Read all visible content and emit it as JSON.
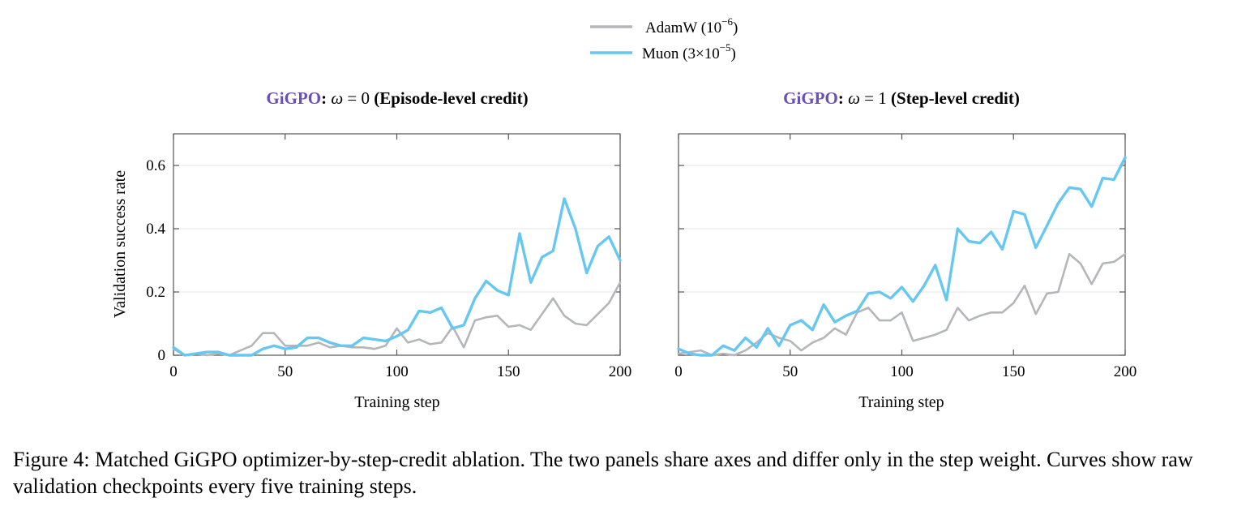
{
  "figure": {
    "caption": "Figure 4: Matched GiGPO optimizer-by-step-credit ablation. The two panels share axes and differ only in the step weight. Curves show raw validation checkpoints every five training steps."
  },
  "legend": [
    {
      "series": "AdamW",
      "lr_base": "10",
      "lr_exp": "−6",
      "color": "#b4b6ba"
    },
    {
      "series": "Muon",
      "lr_base": "3×10",
      "lr_exp": "−5",
      "color": "#66c8f2"
    }
  ],
  "colors": {
    "method": "#6a4fb8",
    "grid": "#e4e4e4",
    "axis": "#555555"
  },
  "chart_data": [
    {
      "type": "line",
      "title": {
        "method": "GiGPO",
        "sep": ":",
        "omega": "ω",
        "eq": " = 0 ",
        "credit": "(Episode-level credit)"
      },
      "xlabel": "Training step",
      "ylabel": "Validation success rate",
      "xlim": [
        0,
        200
      ],
      "ylim": [
        0,
        0.7
      ],
      "xticks": [
        0,
        50,
        100,
        150,
        200
      ],
      "xtick_labels": [
        "0",
        "50",
        "100",
        "150",
        "200"
      ],
      "yticks": [
        0,
        0.2,
        0.4,
        0.6
      ],
      "ytick_labels": [
        "0",
        "0.2",
        "0.4",
        "0.6"
      ],
      "grid": true,
      "x": [
        0,
        5,
        10,
        15,
        20,
        25,
        30,
        35,
        40,
        45,
        50,
        55,
        60,
        65,
        70,
        75,
        80,
        85,
        90,
        95,
        100,
        105,
        110,
        115,
        120,
        125,
        130,
        135,
        140,
        145,
        150,
        155,
        160,
        165,
        170,
        175,
        180,
        185,
        190,
        195,
        200
      ],
      "series": [
        {
          "name": "AdamW (10⁻⁶)",
          "color": "#b4b6ba",
          "values": [
            0.02,
            0.0,
            0.005,
            0.0,
            0.005,
            0.0,
            0.015,
            0.03,
            0.07,
            0.07,
            0.03,
            0.03,
            0.03,
            0.04,
            0.025,
            0.03,
            0.025,
            0.025,
            0.02,
            0.03,
            0.085,
            0.04,
            0.05,
            0.035,
            0.04,
            0.09,
            0.025,
            0.11,
            0.12,
            0.125,
            0.09,
            0.095,
            0.08,
            0.13,
            0.18,
            0.125,
            0.1,
            0.095,
            0.13,
            0.165,
            0.23
          ]
        },
        {
          "name": "Muon (3×10⁻⁵)",
          "color": "#66c8f2",
          "values": [
            0.025,
            0.0,
            0.005,
            0.01,
            0.01,
            0.0,
            0.0,
            0.0,
            0.02,
            0.03,
            0.02,
            0.025,
            0.055,
            0.055,
            0.04,
            0.03,
            0.03,
            0.055,
            0.05,
            0.045,
            0.06,
            0.08,
            0.14,
            0.135,
            0.15,
            0.085,
            0.095,
            0.18,
            0.235,
            0.205,
            0.19,
            0.385,
            0.23,
            0.31,
            0.33,
            0.495,
            0.4,
            0.26,
            0.345,
            0.375,
            0.3
          ]
        }
      ]
    },
    {
      "type": "line",
      "title": {
        "method": "GiGPO",
        "sep": ":",
        "omega": "ω",
        "eq": " = 1 ",
        "credit": "(Step-level credit)"
      },
      "xlabel": "Training step",
      "ylabel": "",
      "xlim": [
        0,
        200
      ],
      "ylim": [
        0,
        0.7
      ],
      "xticks": [
        0,
        50,
        100,
        150,
        200
      ],
      "xtick_labels": [
        "0",
        "50",
        "100",
        "150",
        "200"
      ],
      "yticks": [
        0,
        0.2,
        0.4,
        0.6
      ],
      "ytick_labels": [],
      "grid": true,
      "x": [
        0,
        5,
        10,
        15,
        20,
        25,
        30,
        35,
        40,
        45,
        50,
        55,
        60,
        65,
        70,
        75,
        80,
        85,
        90,
        95,
        100,
        105,
        110,
        115,
        120,
        125,
        130,
        135,
        140,
        145,
        150,
        155,
        160,
        165,
        170,
        175,
        180,
        185,
        190,
        195,
        200
      ],
      "series": [
        {
          "name": "AdamW (10⁻⁶)",
          "color": "#b4b6ba",
          "values": [
            0.005,
            0.01,
            0.015,
            0.0,
            0.005,
            0.0,
            0.015,
            0.04,
            0.07,
            0.055,
            0.045,
            0.015,
            0.04,
            0.055,
            0.085,
            0.065,
            0.135,
            0.15,
            0.11,
            0.11,
            0.135,
            0.045,
            0.055,
            0.065,
            0.08,
            0.15,
            0.11,
            0.125,
            0.135,
            0.135,
            0.165,
            0.22,
            0.13,
            0.195,
            0.2,
            0.32,
            0.29,
            0.225,
            0.29,
            0.295,
            0.32
          ]
        },
        {
          "name": "Muon (3×10⁻⁵)",
          "color": "#66c8f2",
          "values": [
            0.02,
            0.005,
            0.0,
            0.0,
            0.03,
            0.015,
            0.055,
            0.025,
            0.085,
            0.03,
            0.095,
            0.11,
            0.08,
            0.16,
            0.105,
            0.125,
            0.14,
            0.195,
            0.2,
            0.18,
            0.215,
            0.17,
            0.22,
            0.285,
            0.175,
            0.4,
            0.36,
            0.355,
            0.39,
            0.335,
            0.455,
            0.445,
            0.34,
            0.41,
            0.48,
            0.53,
            0.525,
            0.47,
            0.56,
            0.555,
            0.625
          ]
        }
      ]
    }
  ]
}
